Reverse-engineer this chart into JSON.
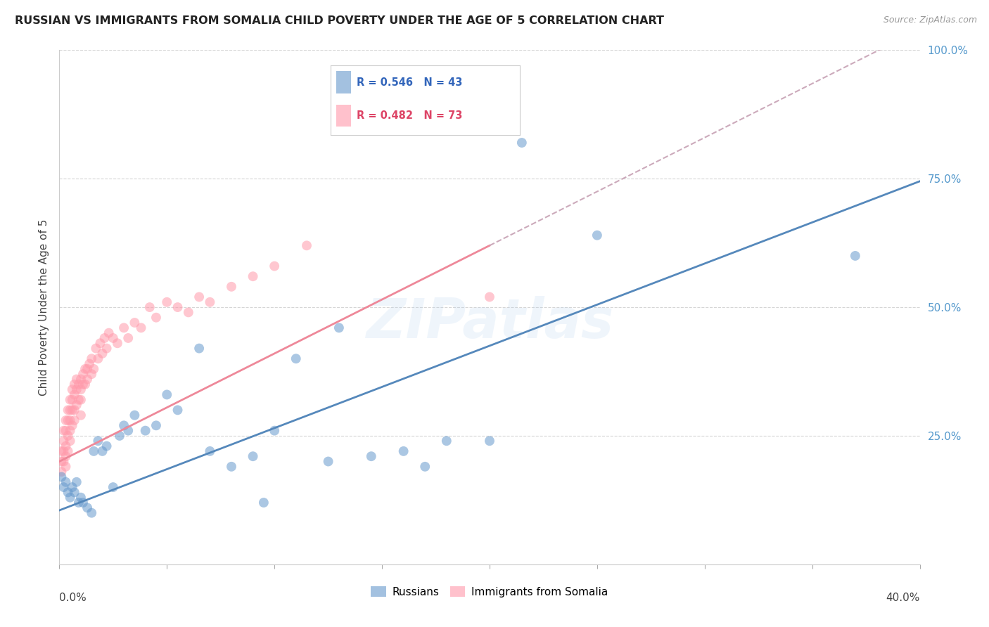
{
  "title": "RUSSIAN VS IMMIGRANTS FROM SOMALIA CHILD POVERTY UNDER THE AGE OF 5 CORRELATION CHART",
  "source": "Source: ZipAtlas.com",
  "ylabel": "Child Poverty Under the Age of 5",
  "background_color": "#ffffff",
  "watermark": "ZIPatlas",
  "russians_color": "#6699cc",
  "somalia_color": "#ff99aa",
  "trend_russia_color": "#5588bb",
  "trend_somalia_color": "#ee8899",
  "trend_extrapolate_color": "#ddbbcc",
  "russians_R": 0.546,
  "russians_N": 43,
  "somalia_R": 0.482,
  "somalia_N": 73,
  "russians_x": [
    0.001,
    0.002,
    0.003,
    0.004,
    0.005,
    0.006,
    0.007,
    0.008,
    0.009,
    0.01,
    0.011,
    0.013,
    0.015,
    0.016,
    0.018,
    0.02,
    0.022,
    0.025,
    0.028,
    0.03,
    0.032,
    0.035,
    0.04,
    0.045,
    0.05,
    0.055,
    0.065,
    0.07,
    0.08,
    0.09,
    0.095,
    0.1,
    0.11,
    0.125,
    0.13,
    0.145,
    0.16,
    0.17,
    0.18,
    0.2,
    0.215,
    0.25,
    0.37
  ],
  "russians_y": [
    0.17,
    0.15,
    0.16,
    0.14,
    0.13,
    0.15,
    0.14,
    0.16,
    0.12,
    0.13,
    0.12,
    0.11,
    0.1,
    0.22,
    0.24,
    0.22,
    0.23,
    0.15,
    0.25,
    0.27,
    0.26,
    0.29,
    0.26,
    0.27,
    0.33,
    0.3,
    0.42,
    0.22,
    0.19,
    0.21,
    0.12,
    0.26,
    0.4,
    0.2,
    0.46,
    0.21,
    0.22,
    0.19,
    0.24,
    0.24,
    0.82,
    0.64,
    0.6
  ],
  "somalia_x": [
    0.001,
    0.001,
    0.001,
    0.002,
    0.002,
    0.002,
    0.002,
    0.003,
    0.003,
    0.003,
    0.003,
    0.003,
    0.004,
    0.004,
    0.004,
    0.004,
    0.005,
    0.005,
    0.005,
    0.005,
    0.005,
    0.006,
    0.006,
    0.006,
    0.006,
    0.007,
    0.007,
    0.007,
    0.007,
    0.008,
    0.008,
    0.008,
    0.009,
    0.009,
    0.01,
    0.01,
    0.01,
    0.01,
    0.011,
    0.011,
    0.012,
    0.012,
    0.013,
    0.013,
    0.014,
    0.015,
    0.015,
    0.016,
    0.017,
    0.018,
    0.019,
    0.02,
    0.021,
    0.022,
    0.023,
    0.025,
    0.027,
    0.03,
    0.032,
    0.035,
    0.038,
    0.042,
    0.045,
    0.05,
    0.055,
    0.06,
    0.065,
    0.07,
    0.08,
    0.09,
    0.1,
    0.115,
    0.2
  ],
  "somalia_y": [
    0.22,
    0.2,
    0.18,
    0.26,
    0.24,
    0.22,
    0.2,
    0.28,
    0.26,
    0.23,
    0.21,
    0.19,
    0.3,
    0.28,
    0.25,
    0.22,
    0.32,
    0.3,
    0.28,
    0.26,
    0.24,
    0.34,
    0.32,
    0.3,
    0.27,
    0.35,
    0.33,
    0.3,
    0.28,
    0.36,
    0.34,
    0.31,
    0.35,
    0.32,
    0.36,
    0.34,
    0.32,
    0.29,
    0.37,
    0.35,
    0.38,
    0.35,
    0.38,
    0.36,
    0.39,
    0.4,
    0.37,
    0.38,
    0.42,
    0.4,
    0.43,
    0.41,
    0.44,
    0.42,
    0.45,
    0.44,
    0.43,
    0.46,
    0.44,
    0.47,
    0.46,
    0.5,
    0.48,
    0.51,
    0.5,
    0.49,
    0.52,
    0.51,
    0.54,
    0.56,
    0.58,
    0.62,
    0.52
  ],
  "trend_russia_intercept": 0.105,
  "trend_russia_slope": 1.6,
  "trend_somalia_intercept": 0.2,
  "trend_somalia_slope": 2.1,
  "xmin": 0.0,
  "xmax": 0.4,
  "ymin": 0.0,
  "ymax": 1.0
}
